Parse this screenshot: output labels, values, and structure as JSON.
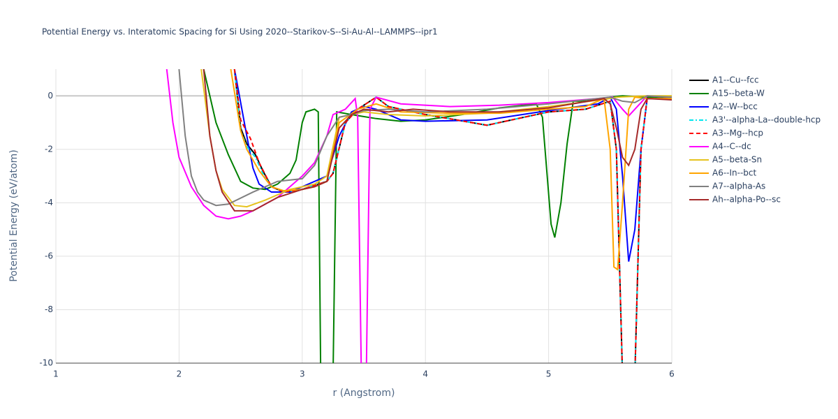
{
  "chart_data": {
    "type": "line",
    "title": "Potential Energy vs. Interatomic Spacing for Si Using 2020--Starikov-S--Si-Au-Al--LAMMPS--ipr1",
    "x_label": "r (Angstrom)",
    "y_label": "Potential Energy (eV/atom)",
    "xlim": [
      1,
      6
    ],
    "ylim": [
      -10,
      1
    ],
    "xticks": [
      1,
      2,
      3,
      4,
      5,
      6
    ],
    "yticks": [
      -10,
      -8,
      -6,
      -4,
      -2,
      0
    ],
    "grid": true,
    "series": [
      {
        "name": "A1--Cu--fcc",
        "color": "#000000",
        "dash": "solid",
        "x": [
          2.45,
          2.5,
          2.55,
          2.62,
          2.68,
          2.75,
          2.85,
          3.0,
          3.2,
          3.25,
          3.35,
          3.45,
          3.6,
          3.7,
          4.0,
          4.5,
          4.8,
          5.0,
          5.3,
          5.5,
          5.55,
          5.6,
          5.7,
          5.75,
          5.8,
          6.0
        ],
        "values": [
          1,
          -1.2,
          -1.8,
          -2.2,
          -2.8,
          -3.4,
          -3.6,
          -3.5,
          -3.2,
          -2.9,
          -1.0,
          -0.5,
          -0.05,
          -0.4,
          -0.7,
          -1.1,
          -0.8,
          -0.6,
          -0.5,
          -0.2,
          -2,
          -10.5,
          -10.5,
          -2,
          -0.1,
          -0.1
        ]
      },
      {
        "name": "A15--beta-W",
        "color": "#008000",
        "dash": "solid",
        "x": [
          2.2,
          2.3,
          2.4,
          2.5,
          2.6,
          2.7,
          2.8,
          2.9,
          2.95,
          3.0,
          3.03,
          3.1,
          3.13,
          3.15,
          3.25,
          3.28,
          3.4,
          3.6,
          3.8,
          4.0,
          4.3,
          4.6,
          4.9,
          4.95,
          5.02,
          5.05,
          5.1,
          5.15,
          5.2,
          5.3,
          5.5,
          5.6,
          5.8,
          6.0
        ],
        "values": [
          1,
          -1,
          -2.2,
          -3.2,
          -3.45,
          -3.5,
          -3.3,
          -2.9,
          -2.4,
          -1.0,
          -0.6,
          -0.5,
          -0.6,
          -10.5,
          -10.5,
          -0.6,
          -0.7,
          -0.85,
          -0.95,
          -0.9,
          -0.7,
          -0.45,
          -0.3,
          -0.8,
          -4.8,
          -5.3,
          -4,
          -1.8,
          -0.2,
          -0.2,
          -0.05,
          0,
          -0.05,
          -0.05
        ]
      },
      {
        "name": "A2--W--bcc",
        "color": "#0000ff",
        "dash": "solid",
        "x": [
          2.45,
          2.55,
          2.6,
          2.65,
          2.75,
          2.9,
          3.1,
          3.2,
          3.3,
          3.4,
          3.5,
          3.6,
          3.8,
          4.0,
          4.5,
          5.0,
          5.4,
          5.5,
          5.55,
          5.6,
          5.65,
          5.7,
          5.75,
          5.8,
          6.0
        ],
        "values": [
          1,
          -1.5,
          -2.7,
          -3.3,
          -3.6,
          -3.6,
          -3.2,
          -3.0,
          -1.5,
          -0.6,
          -0.4,
          -0.5,
          -0.9,
          -0.95,
          -0.9,
          -0.55,
          -0.3,
          -0.05,
          -0.5,
          -3,
          -6.2,
          -5,
          -2,
          -0.1,
          -0.1
        ]
      },
      {
        "name": "A3'--alpha-La--double-hcp",
        "color": "#00e5ee",
        "dash": "dashdot",
        "x": [
          2.45,
          2.5,
          2.55,
          2.62,
          2.68,
          2.75,
          2.85,
          3.0,
          3.2,
          3.25,
          3.35,
          3.45,
          3.6,
          3.7,
          4.0,
          4.5,
          4.8,
          5.0,
          5.3,
          5.5,
          5.55,
          5.6,
          5.7,
          5.75,
          5.8,
          6.0
        ],
        "values": [
          1,
          -1.3,
          -1.9,
          -2.3,
          -2.9,
          -3.4,
          -3.6,
          -3.5,
          -3.2,
          -2.9,
          -1.0,
          -0.5,
          -0.05,
          -0.4,
          -0.7,
          -1.1,
          -0.8,
          -0.6,
          -0.5,
          -0.2,
          -2,
          -10.5,
          -10.5,
          -2,
          -0.1,
          -0.1
        ]
      },
      {
        "name": "A3--Mg--hcp",
        "color": "#ff0000",
        "dash": "dash",
        "x": [
          2.45,
          2.5,
          2.58,
          2.65,
          2.75,
          2.85,
          3.0,
          3.2,
          3.25,
          3.35,
          3.45,
          3.6,
          3.7,
          4.0,
          4.5,
          4.8,
          5.0,
          5.3,
          5.5,
          5.55,
          5.6,
          5.7,
          5.75,
          5.8,
          6.0
        ],
        "values": [
          1,
          -0.9,
          -1.6,
          -2.5,
          -3.4,
          -3.6,
          -3.5,
          -3.2,
          -2.9,
          -1.0,
          -0.5,
          -0.05,
          -0.4,
          -0.7,
          -1.1,
          -0.8,
          -0.6,
          -0.5,
          -0.2,
          -2,
          -10.5,
          -10.5,
          -2,
          -0.1,
          -0.1
        ]
      },
      {
        "name": "A4--C--dc",
        "color": "#ff00ff",
        "dash": "solid",
        "x": [
          1.9,
          1.95,
          2.0,
          2.1,
          2.2,
          2.3,
          2.4,
          2.5,
          2.6,
          2.8,
          3.0,
          3.1,
          3.2,
          3.25,
          3.35,
          3.43,
          3.45,
          3.48,
          3.52,
          3.55,
          3.6,
          3.8,
          4.2,
          4.6,
          5.0,
          5.4,
          5.52,
          5.6,
          5.65,
          5.7,
          5.8,
          6.0
        ],
        "values": [
          1,
          -1,
          -2.3,
          -3.4,
          -4.1,
          -4.5,
          -4.6,
          -4.5,
          -4.3,
          -3.8,
          -3.0,
          -2.5,
          -1.5,
          -0.7,
          -0.5,
          -0.1,
          -0.8,
          -10.5,
          -10.5,
          -0.5,
          -0.05,
          -0.3,
          -0.4,
          -0.35,
          -0.25,
          -0.1,
          -0.05,
          -0.5,
          -0.75,
          -0.5,
          0,
          -0.05
        ]
      },
      {
        "name": "A5--beta-Sn",
        "color": "#e6c31e",
        "dash": "solid",
        "x": [
          2.18,
          2.25,
          2.3,
          2.35,
          2.45,
          2.55,
          2.7,
          2.9,
          3.1,
          3.2,
          3.3,
          3.5,
          3.7,
          4.0,
          4.5,
          5.0,
          5.5,
          5.55,
          5.8,
          6.0
        ],
        "values": [
          1,
          -1.5,
          -2.8,
          -3.5,
          -4.1,
          -4.15,
          -3.9,
          -3.5,
          -3.3,
          -3.0,
          -0.8,
          -0.6,
          -0.7,
          -0.75,
          -0.65,
          -0.4,
          -0.1,
          -0.05,
          0,
          0
        ]
      },
      {
        "name": "A6--In--bct",
        "color": "#ffa500",
        "dash": "solid",
        "x": [
          2.42,
          2.5,
          2.55,
          2.65,
          2.75,
          2.85,
          3.0,
          3.1,
          3.2,
          3.3,
          3.45,
          3.6,
          3.8,
          4.2,
          4.6,
          5.0,
          5.3,
          5.45,
          5.5,
          5.53,
          5.56,
          5.6,
          5.65,
          5.7,
          5.8,
          6.0
        ],
        "values": [
          1,
          -1.3,
          -2,
          -2.8,
          -3.4,
          -3.55,
          -3.5,
          -3.4,
          -3.2,
          -1,
          -0.5,
          -0.3,
          -0.6,
          -0.65,
          -0.65,
          -0.5,
          -0.4,
          -0.1,
          -2,
          -6.4,
          -6.5,
          -4,
          -0.5,
          -0.05,
          -0.1,
          -0.1
        ]
      },
      {
        "name": "A7--alpha-As",
        "color": "#808080",
        "dash": "solid",
        "x": [
          2.0,
          2.05,
          2.1,
          2.15,
          2.2,
          2.3,
          2.4,
          2.6,
          2.8,
          3.0,
          3.1,
          3.2,
          3.3,
          3.4,
          3.5,
          3.7,
          4.0,
          4.5,
          5.0,
          5.5,
          5.6,
          5.7,
          5.8,
          6.0
        ],
        "values": [
          1,
          -1.5,
          -3,
          -3.6,
          -3.9,
          -4.1,
          -4.05,
          -3.6,
          -3.2,
          -3.1,
          -2.6,
          -1.5,
          -0.8,
          -0.7,
          -0.55,
          -0.5,
          -0.6,
          -0.5,
          -0.3,
          -0.05,
          -0.2,
          -0.25,
          0,
          -0.05
        ]
      },
      {
        "name": "Ah--alpha-Po--sc",
        "color": "#a52a2a",
        "dash": "solid",
        "x": [
          2.2,
          2.25,
          2.3,
          2.35,
          2.45,
          2.6,
          2.8,
          3.0,
          3.1,
          3.2,
          3.3,
          3.4,
          3.5,
          3.7,
          3.9,
          4.2,
          4.6,
          5.0,
          5.45,
          5.5,
          5.55,
          5.6,
          5.65,
          5.7,
          5.75,
          5.8,
          6.0
        ],
        "values": [
          1,
          -1.5,
          -2.8,
          -3.6,
          -4.3,
          -4.3,
          -3.8,
          -3.5,
          -3.4,
          -3.2,
          -1.2,
          -0.7,
          -0.5,
          -0.6,
          -0.5,
          -0.6,
          -0.6,
          -0.45,
          -0.1,
          -0.3,
          -1.2,
          -2.3,
          -2.6,
          -2,
          -0.5,
          -0.1,
          -0.15
        ]
      }
    ]
  }
}
